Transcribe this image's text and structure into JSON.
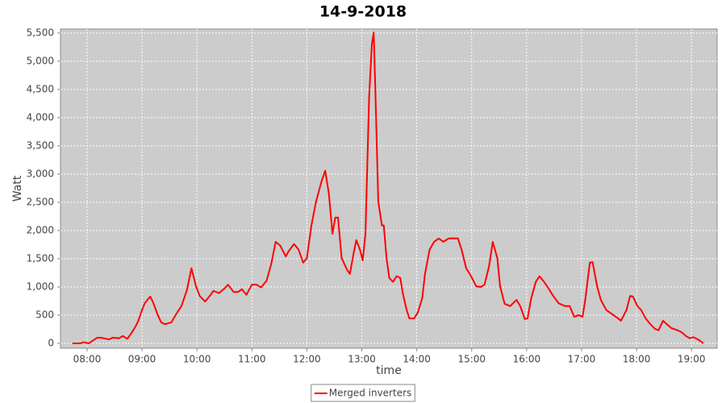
{
  "chart_data": {
    "type": "line",
    "title": "14-9-2018",
    "x_label": "time",
    "y_label": "Watt",
    "x": [
      464,
      473,
      476,
      482,
      491,
      495,
      504,
      508,
      515,
      519,
      524,
      528,
      533,
      536,
      540,
      543,
      549,
      552,
      557,
      561,
      565,
      572,
      577,
      583,
      589,
      594,
      599,
      603,
      609,
      614,
      618,
      624,
      630,
      634,
      640,
      645,
      649,
      654,
      660,
      665,
      670,
      676,
      681,
      686,
      691,
      697,
      700,
      706,
      711,
      716,
      720,
      725,
      730,
      736,
      740,
      744,
      748,
      751,
      754,
      758,
      764,
      767,
      771,
      774,
      778,
      781,
      784,
      788,
      791,
      793,
      795,
      798,
      802,
      804,
      807,
      810,
      814,
      818,
      822,
      825,
      829,
      832,
      837,
      841,
      846,
      849,
      854,
      859,
      864,
      869,
      875,
      880,
      885,
      889,
      894,
      899,
      905,
      910,
      914,
      919,
      923,
      928,
      931,
      936,
      942,
      949,
      953,
      958,
      961,
      965,
      970,
      974,
      979,
      984,
      989,
      995,
      1002,
      1007,
      1012,
      1017,
      1021,
      1024,
      1029,
      1032,
      1037,
      1041,
      1047,
      1054,
      1060,
      1063,
      1069,
      1073,
      1076,
      1081,
      1085,
      1090,
      1095,
      1100,
      1104,
      1109,
      1113,
      1118,
      1125,
      1129,
      1134,
      1138,
      1142,
      1148,
      1153
    ],
    "series": [
      {
        "name": "Merged inverters",
        "color": "#ff0000",
        "values": [
          0,
          0,
          20,
          0,
          100,
          100,
          70,
          100,
          90,
          130,
          80,
          170,
          300,
          400,
          590,
          710,
          830,
          730,
          510,
          370,
          340,
          370,
          510,
          660,
          940,
          1330,
          1010,
          840,
          740,
          840,
          930,
          890,
          970,
          1040,
          910,
          910,
          960,
          860,
          1040,
          1040,
          990,
          1110,
          1400,
          1800,
          1730,
          1540,
          1630,
          1760,
          1660,
          1430,
          1510,
          2090,
          2510,
          2870,
          3060,
          2660,
          1940,
          2230,
          2230,
          1510,
          1300,
          1230,
          1590,
          1830,
          1660,
          1470,
          1940,
          4370,
          5300,
          5510,
          4370,
          2510,
          2090,
          2090,
          1510,
          1160,
          1090,
          1190,
          1160,
          870,
          590,
          440,
          440,
          540,
          800,
          1230,
          1660,
          1800,
          1860,
          1800,
          1860,
          1860,
          1860,
          1660,
          1330,
          1200,
          1010,
          1000,
          1040,
          1370,
          1800,
          1510,
          1010,
          700,
          660,
          770,
          660,
          430,
          440,
          800,
          1090,
          1190,
          1090,
          970,
          840,
          710,
          660,
          660,
          470,
          500,
          470,
          770,
          1430,
          1440,
          1010,
          770,
          590,
          510,
          440,
          400,
          590,
          840,
          830,
          660,
          590,
          440,
          340,
          260,
          230,
          400,
          340,
          270,
          230,
          200,
          130,
          90,
          110,
          60,
          0
        ]
      }
    ],
    "xlim": [
      451,
      1168
    ],
    "xticks": [
      {
        "value": 480,
        "label": "08:00"
      },
      {
        "value": 540,
        "label": "09:00"
      },
      {
        "value": 600,
        "label": "10:00"
      },
      {
        "value": 660,
        "label": "11:00"
      },
      {
        "value": 720,
        "label": "12:00"
      },
      {
        "value": 780,
        "label": "13:00"
      },
      {
        "value": 840,
        "label": "14:00"
      },
      {
        "value": 900,
        "label": "15:00"
      },
      {
        "value": 960,
        "label": "16:00"
      },
      {
        "value": 1020,
        "label": "17:00"
      },
      {
        "value": 1080,
        "label": "18:00"
      },
      {
        "value": 1140,
        "label": "19:00"
      }
    ],
    "ylim": [
      -86,
      5571
    ],
    "yticks": [
      0,
      500,
      {
        "value": 1000,
        "label": "1,000"
      },
      {
        "value": 1500,
        "label": "1,500"
      },
      {
        "value": 2000,
        "label": "2,000"
      },
      {
        "value": 2500,
        "label": "2,500"
      },
      {
        "value": 3000,
        "label": "3,000"
      },
      {
        "value": 3500,
        "label": "3,500"
      },
      {
        "value": 4000,
        "label": "4,000"
      },
      {
        "value": 4500,
        "label": "4,500"
      },
      {
        "value": 5000,
        "label": "5,000"
      },
      {
        "value": 5500,
        "label": "5,500"
      }
    ],
    "grid": true,
    "background": "#cccccc",
    "legend": "bottom"
  }
}
